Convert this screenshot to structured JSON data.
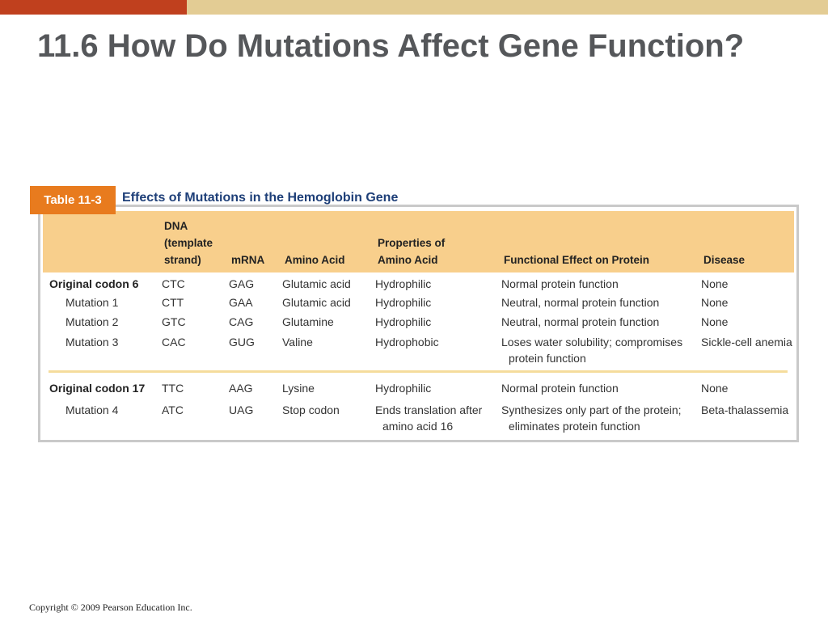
{
  "slide": {
    "title": "11.6 How Do Mutations Affect Gene Function?",
    "colors": {
      "accent_red": "#c0401e",
      "accent_tan": "#e3cc94",
      "table_orange": "#e87b1e",
      "header_fill": "#f8cf8c",
      "caption_blue": "#1e3f78"
    }
  },
  "table": {
    "tag": "Table 11-3",
    "caption": "Effects of Mutations in the Hemoglobin Gene",
    "headers": {
      "dna": "DNA (template strand)",
      "mrna": "mRNA",
      "amino_acid": "Amino Acid",
      "properties": "Properties of Amino Acid",
      "effect": "Functional Effect on Protein",
      "disease": "Disease"
    },
    "rows": [
      {
        "label": "Original codon 6",
        "dna": "CTC",
        "mrna": "GAG",
        "amino_acid": "Glutamic acid",
        "properties": "Hydrophilic",
        "effect": "Normal protein function",
        "disease": "None"
      },
      {
        "label": "Mutation 1",
        "dna": "CTT",
        "mrna": "GAA",
        "amino_acid": "Glutamic acid",
        "properties": "Hydrophilic",
        "effect": "Neutral, normal protein function",
        "disease": "None"
      },
      {
        "label": "Mutation 2",
        "dna": "GTC",
        "mrna": "CAG",
        "amino_acid": "Glutamine",
        "properties": "Hydrophilic",
        "effect": "Neutral, normal protein function",
        "disease": "None"
      },
      {
        "label": "Mutation 3",
        "dna": "CAC",
        "mrna": "GUG",
        "amino_acid": "Valine",
        "properties": "Hydrophobic",
        "effect": "Loses water solubility; compromises protein function",
        "disease": "Sickle-cell anemia"
      },
      {
        "label": "Original codon 17",
        "dna": "TTC",
        "mrna": "AAG",
        "amino_acid": "Lysine",
        "properties": "Hydrophilic",
        "effect": "Normal protein function",
        "disease": "None"
      },
      {
        "label": "Mutation 4",
        "dna": "ATC",
        "mrna": "UAG",
        "amino_acid": "Stop codon",
        "properties": "Ends translation after amino acid 16",
        "effect": "Synthesizes only part of the protein; eliminates protein function",
        "disease": "Beta-thalassemia"
      }
    ]
  },
  "footer": {
    "copyright": "Copyright © 2009 Pearson Education Inc."
  }
}
